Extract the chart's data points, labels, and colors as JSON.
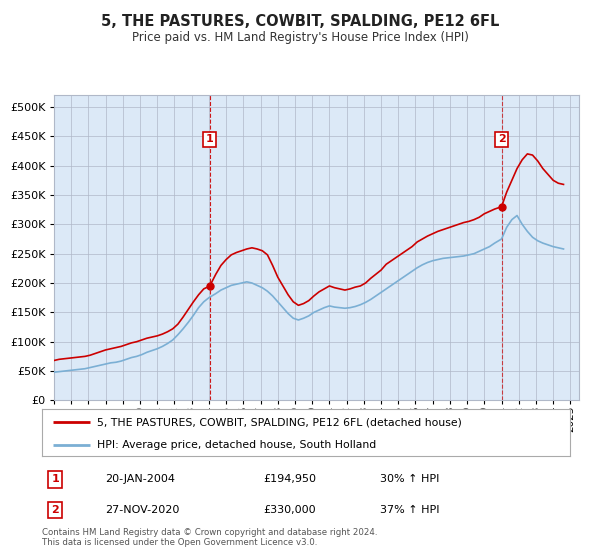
{
  "title": "5, THE PASTURES, COWBIT, SPALDING, PE12 6FL",
  "subtitle": "Price paid vs. HM Land Registry's House Price Index (HPI)",
  "background_color": "#ffffff",
  "plot_bg_color": "#dce9f7",
  "red_line_color": "#cc0000",
  "blue_line_color": "#7bafd4",
  "dashed_color": "#cc0000",
  "ann1_x": 2004.05,
  "ann2_x": 2021.0,
  "ann1_y": 194950,
  "ann2_y": 330000,
  "annotation1": {
    "label": "1",
    "date_str": "20-JAN-2004",
    "price_str": "£194,950",
    "hpi_str": "30% ↑ HPI"
  },
  "annotation2": {
    "label": "2",
    "date_str": "27-NOV-2020",
    "price_str": "£330,000",
    "hpi_str": "37% ↑ HPI"
  },
  "yticks": [
    0,
    50000,
    100000,
    150000,
    200000,
    250000,
    300000,
    350000,
    400000,
    450000,
    500000
  ],
  "ylim": [
    0,
    520000
  ],
  "legend_line1": "5, THE PASTURES, COWBIT, SPALDING, PE12 6FL (detached house)",
  "legend_line2": "HPI: Average price, detached house, South Holland",
  "footer": "Contains HM Land Registry data © Crown copyright and database right 2024.\nThis data is licensed under the Open Government Licence v3.0.",
  "xlim_left": 1995.0,
  "xlim_right": 2025.5,
  "red_data_x": [
    1995.0,
    1995.3,
    1995.6,
    1995.9,
    1996.2,
    1996.5,
    1996.8,
    1997.1,
    1997.4,
    1997.7,
    1998.0,
    1998.3,
    1998.6,
    1998.9,
    1999.2,
    1999.5,
    1999.8,
    2000.1,
    2000.4,
    2000.7,
    2001.0,
    2001.3,
    2001.6,
    2001.9,
    2002.2,
    2002.5,
    2002.8,
    2003.1,
    2003.4,
    2003.7,
    2004.05,
    2004.4,
    2004.7,
    2005.0,
    2005.3,
    2005.6,
    2005.9,
    2006.2,
    2006.5,
    2006.8,
    2007.1,
    2007.4,
    2007.7,
    2008.0,
    2008.3,
    2008.6,
    2008.9,
    2009.2,
    2009.5,
    2009.8,
    2010.1,
    2010.4,
    2010.7,
    2011.0,
    2011.3,
    2011.6,
    2011.9,
    2012.2,
    2012.5,
    2012.8,
    2013.1,
    2013.4,
    2013.7,
    2014.0,
    2014.3,
    2014.6,
    2014.9,
    2015.2,
    2015.5,
    2015.8,
    2016.1,
    2016.4,
    2016.7,
    2017.0,
    2017.3,
    2017.6,
    2017.9,
    2018.2,
    2018.5,
    2018.8,
    2019.1,
    2019.4,
    2019.7,
    2020.0,
    2020.3,
    2020.6,
    2021.0,
    2021.3,
    2021.6,
    2021.9,
    2022.2,
    2022.5,
    2022.8,
    2023.1,
    2023.4,
    2023.7,
    2024.0,
    2024.3,
    2024.6
  ],
  "red_data_y": [
    68000,
    70000,
    71000,
    72000,
    73000,
    74000,
    75000,
    77000,
    80000,
    83000,
    86000,
    88000,
    90000,
    92000,
    95000,
    98000,
    100000,
    103000,
    106000,
    108000,
    110000,
    113000,
    117000,
    122000,
    130000,
    142000,
    155000,
    168000,
    180000,
    190000,
    194950,
    215000,
    230000,
    240000,
    248000,
    252000,
    255000,
    258000,
    260000,
    258000,
    255000,
    248000,
    230000,
    210000,
    195000,
    180000,
    168000,
    162000,
    165000,
    170000,
    178000,
    185000,
    190000,
    195000,
    192000,
    190000,
    188000,
    190000,
    193000,
    195000,
    200000,
    208000,
    215000,
    222000,
    232000,
    238000,
    244000,
    250000,
    256000,
    262000,
    270000,
    275000,
    280000,
    284000,
    288000,
    291000,
    294000,
    297000,
    300000,
    303000,
    305000,
    308000,
    312000,
    318000,
    322000,
    326000,
    330000,
    355000,
    375000,
    395000,
    410000,
    420000,
    418000,
    408000,
    395000,
    385000,
    375000,
    370000,
    368000
  ],
  "blue_data_x": [
    1995.0,
    1995.3,
    1995.6,
    1995.9,
    1996.2,
    1996.5,
    1996.8,
    1997.1,
    1997.4,
    1997.7,
    1998.0,
    1998.3,
    1998.6,
    1998.9,
    1999.2,
    1999.5,
    1999.8,
    2000.1,
    2000.4,
    2000.7,
    2001.0,
    2001.3,
    2001.6,
    2001.9,
    2002.2,
    2002.5,
    2002.8,
    2003.1,
    2003.4,
    2003.7,
    2004.0,
    2004.4,
    2004.7,
    2005.0,
    2005.3,
    2005.6,
    2005.9,
    2006.2,
    2006.5,
    2006.8,
    2007.1,
    2007.4,
    2007.7,
    2008.0,
    2008.3,
    2008.6,
    2008.9,
    2009.2,
    2009.5,
    2009.8,
    2010.1,
    2010.4,
    2010.7,
    2011.0,
    2011.3,
    2011.6,
    2011.9,
    2012.2,
    2012.5,
    2012.8,
    2013.1,
    2013.4,
    2013.7,
    2014.0,
    2014.3,
    2014.6,
    2014.9,
    2015.2,
    2015.5,
    2015.8,
    2016.1,
    2016.4,
    2016.7,
    2017.0,
    2017.3,
    2017.6,
    2017.9,
    2018.2,
    2018.5,
    2018.8,
    2019.1,
    2019.4,
    2019.7,
    2020.0,
    2020.3,
    2020.6,
    2021.0,
    2021.3,
    2021.6,
    2021.9,
    2022.2,
    2022.5,
    2022.8,
    2023.1,
    2023.4,
    2023.7,
    2024.0,
    2024.3,
    2024.6
  ],
  "blue_data_y": [
    48000,
    49000,
    50000,
    51000,
    52000,
    53000,
    54000,
    56000,
    58000,
    60000,
    62000,
    64000,
    65000,
    67000,
    70000,
    73000,
    75000,
    78000,
    82000,
    85000,
    88000,
    92000,
    97000,
    103000,
    112000,
    122000,
    133000,
    145000,
    158000,
    168000,
    175000,
    182000,
    188000,
    192000,
    196000,
    198000,
    200000,
    202000,
    200000,
    196000,
    192000,
    186000,
    178000,
    168000,
    158000,
    148000,
    140000,
    137000,
    140000,
    144000,
    150000,
    154000,
    158000,
    161000,
    159000,
    158000,
    157000,
    158000,
    160000,
    163000,
    167000,
    172000,
    178000,
    184000,
    190000,
    196000,
    202000,
    208000,
    214000,
    220000,
    226000,
    231000,
    235000,
    238000,
    240000,
    242000,
    243000,
    244000,
    245000,
    246000,
    248000,
    250000,
    254000,
    258000,
    262000,
    268000,
    275000,
    295000,
    308000,
    315000,
    300000,
    288000,
    278000,
    272000,
    268000,
    265000,
    262000,
    260000,
    258000
  ]
}
